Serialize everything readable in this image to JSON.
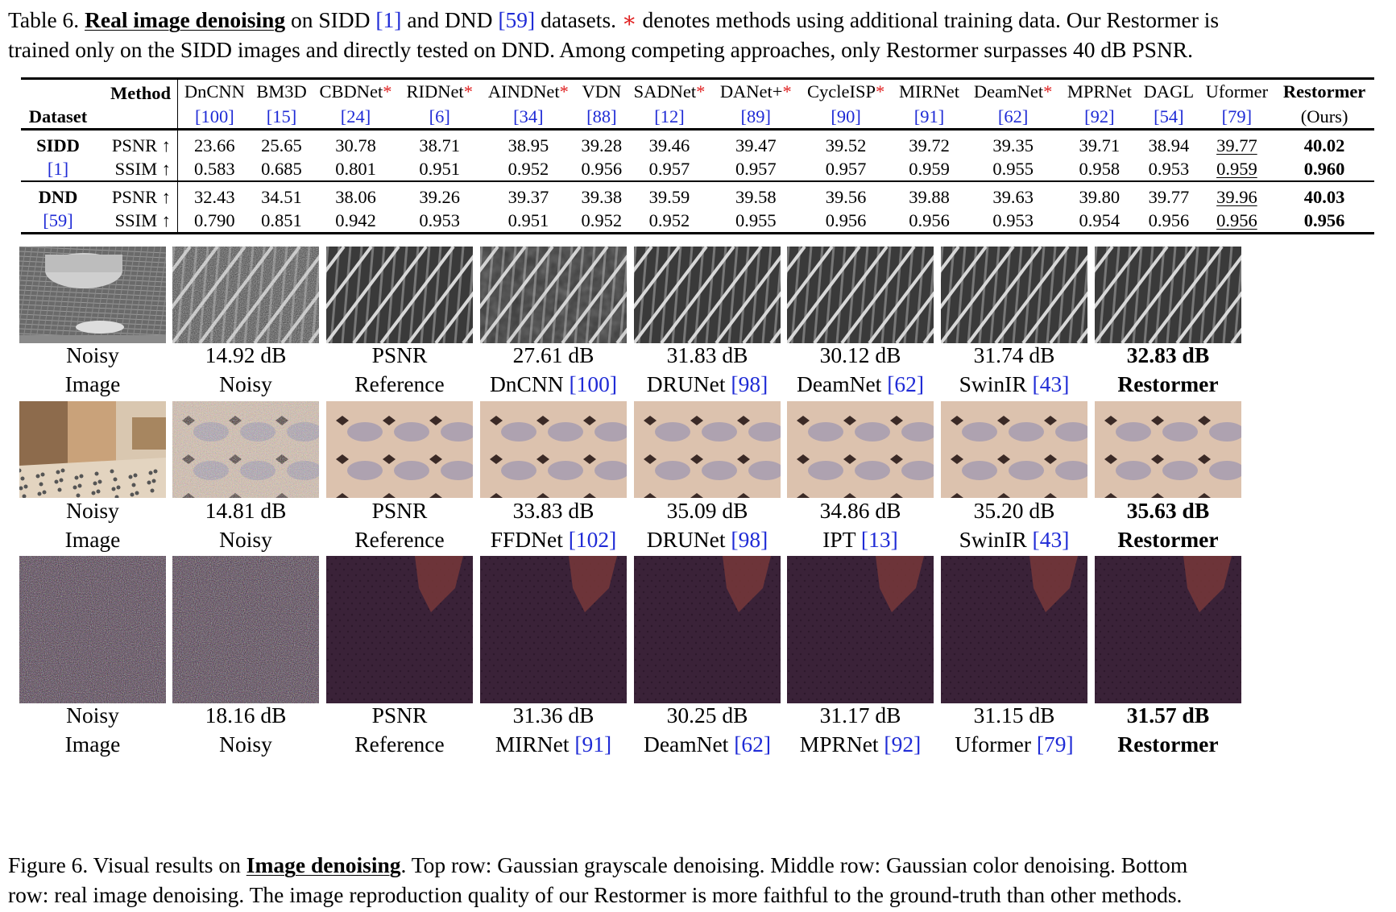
{
  "table_caption": {
    "prefix": "Table 6.",
    "title": "Real image denoising",
    "mid1": "on SIDD",
    "ref1": "[1]",
    "mid2": "and DND",
    "ref2": "[59]",
    "mid3": "datasets.",
    "star": "∗",
    "rest1": "denotes methods using additional training data. Our Restormer is",
    "rest2": "trained only on the SIDD images and directly tested on DND. Among competing approaches, only Restormer surpasses 40 dB PSNR."
  },
  "table": {
    "method_label": "Method",
    "dataset_label": "Dataset",
    "methods": [
      {
        "name": "DnCNN",
        "ref": "[100]",
        "star": ""
      },
      {
        "name": "BM3D",
        "ref": "[15]",
        "star": ""
      },
      {
        "name": "CBDNet",
        "ref": "[24]",
        "star": "*"
      },
      {
        "name": "RIDNet",
        "ref": "[6]",
        "star": "*"
      },
      {
        "name": "AINDNet",
        "ref": "[34]",
        "star": "*"
      },
      {
        "name": "VDN",
        "ref": "[88]",
        "star": ""
      },
      {
        "name": "SADNet",
        "ref": "[12]",
        "star": "*"
      },
      {
        "name": "DANet+",
        "ref": "[89]",
        "star": "*"
      },
      {
        "name": "CycleISP",
        "ref": "[90]",
        "star": "*"
      },
      {
        "name": "MIRNet",
        "ref": "[91]",
        "star": ""
      },
      {
        "name": "DeamNet",
        "ref": "[62]",
        "star": "*"
      },
      {
        "name": "MPRNet",
        "ref": "[92]",
        "star": ""
      },
      {
        "name": "DAGL",
        "ref": "[54]",
        "star": ""
      },
      {
        "name": "Uformer",
        "ref": "[79]",
        "star": ""
      },
      {
        "name": "Restormer",
        "ref": "(Ours)",
        "star": ""
      }
    ],
    "datasets": [
      {
        "name": "SIDD",
        "ref": "[1]",
        "rows": [
          {
            "metric": "PSNR ↑",
            "values": [
              "23.66",
              "25.65",
              "30.78",
              "38.71",
              "38.95",
              "39.28",
              "39.46",
              "39.47",
              "39.52",
              "39.72",
              "39.35",
              "39.71",
              "38.94",
              "39.77",
              "40.02"
            ]
          },
          {
            "metric": "SSIM ↑",
            "values": [
              "0.583",
              "0.685",
              "0.801",
              "0.951",
              "0.952",
              "0.956",
              "0.957",
              "0.957",
              "0.957",
              "0.959",
              "0.955",
              "0.958",
              "0.953",
              "0.959",
              "0.960"
            ]
          }
        ]
      },
      {
        "name": "DND",
        "ref": "[59]",
        "rows": [
          {
            "metric": "PSNR ↑",
            "values": [
              "32.43",
              "34.51",
              "38.06",
              "39.26",
              "39.37",
              "39.38",
              "39.59",
              "39.58",
              "39.56",
              "39.88",
              "39.63",
              "39.80",
              "39.77",
              "39.96",
              "40.03"
            ]
          },
          {
            "metric": "SSIM ↑",
            "values": [
              "0.790",
              "0.851",
              "0.942",
              "0.953",
              "0.951",
              "0.952",
              "0.952",
              "0.955",
              "0.956",
              "0.956",
              "0.953",
              "0.954",
              "0.956",
              "0.956",
              "0.956"
            ]
          }
        ]
      }
    ]
  },
  "figure_rows": [
    {
      "tiles": [
        {
          "top": "Noisy",
          "bottom": "Image",
          "ref": ""
        },
        {
          "top": "14.92 dB",
          "bottom": "Noisy",
          "ref": ""
        },
        {
          "top": "PSNR",
          "bottom": "Reference",
          "ref": ""
        },
        {
          "top": "27.61 dB",
          "bottom": "DnCNN",
          "ref": "[100]"
        },
        {
          "top": "31.83 dB",
          "bottom": "DRUNet",
          "ref": "[98]"
        },
        {
          "top": "30.12 dB",
          "bottom": "DeamNet",
          "ref": "[62]"
        },
        {
          "top": "31.74 dB",
          "bottom": "SwinIR",
          "ref": "[43]"
        },
        {
          "top": "32.83 dB",
          "bottom": "Restormer",
          "ref": ""
        }
      ]
    },
    {
      "tiles": [
        {
          "top": "Noisy",
          "bottom": "Image",
          "ref": ""
        },
        {
          "top": "14.81 dB",
          "bottom": "Noisy",
          "ref": ""
        },
        {
          "top": "PSNR",
          "bottom": "Reference",
          "ref": ""
        },
        {
          "top": "33.83 dB",
          "bottom": "FFDNet",
          "ref": "[102]"
        },
        {
          "top": "35.09 dB",
          "bottom": "DRUNet",
          "ref": "[98]"
        },
        {
          "top": "34.86 dB",
          "bottom": "IPT",
          "ref": "[13]"
        },
        {
          "top": "35.20 dB",
          "bottom": "SwinIR",
          "ref": "[43]"
        },
        {
          "top": "35.63 dB",
          "bottom": "Restormer",
          "ref": ""
        }
      ]
    },
    {
      "tiles": [
        {
          "top": "Noisy",
          "bottom": "Image",
          "ref": ""
        },
        {
          "top": "18.16 dB",
          "bottom": "Noisy",
          "ref": ""
        },
        {
          "top": "PSNR",
          "bottom": "Reference",
          "ref": ""
        },
        {
          "top": "31.36 dB",
          "bottom": "MIRNet",
          "ref": "[91]"
        },
        {
          "top": "30.25 dB",
          "bottom": "DeamNet",
          "ref": "[62]"
        },
        {
          "top": "31.17 dB",
          "bottom": "MPRNet",
          "ref": "[92]"
        },
        {
          "top": "31.15 dB",
          "bottom": "Uformer",
          "ref": "[79]"
        },
        {
          "top": "31.57 dB",
          "bottom": "Restormer",
          "ref": ""
        }
      ]
    }
  ],
  "figure_caption": {
    "prefix": "Figure 6.  Visual results on",
    "title": "Image denoising",
    "rest1": ".  Top row: Gaussian grayscale denoising.  Middle row: Gaussian color denoising.  Bottom",
    "rest2": "row: real image denoising. The image reproduction quality of our Restormer is more faithful to the ground-truth than other methods."
  },
  "colors": {
    "citation": "#1f2bd6",
    "star": "#e02020"
  }
}
